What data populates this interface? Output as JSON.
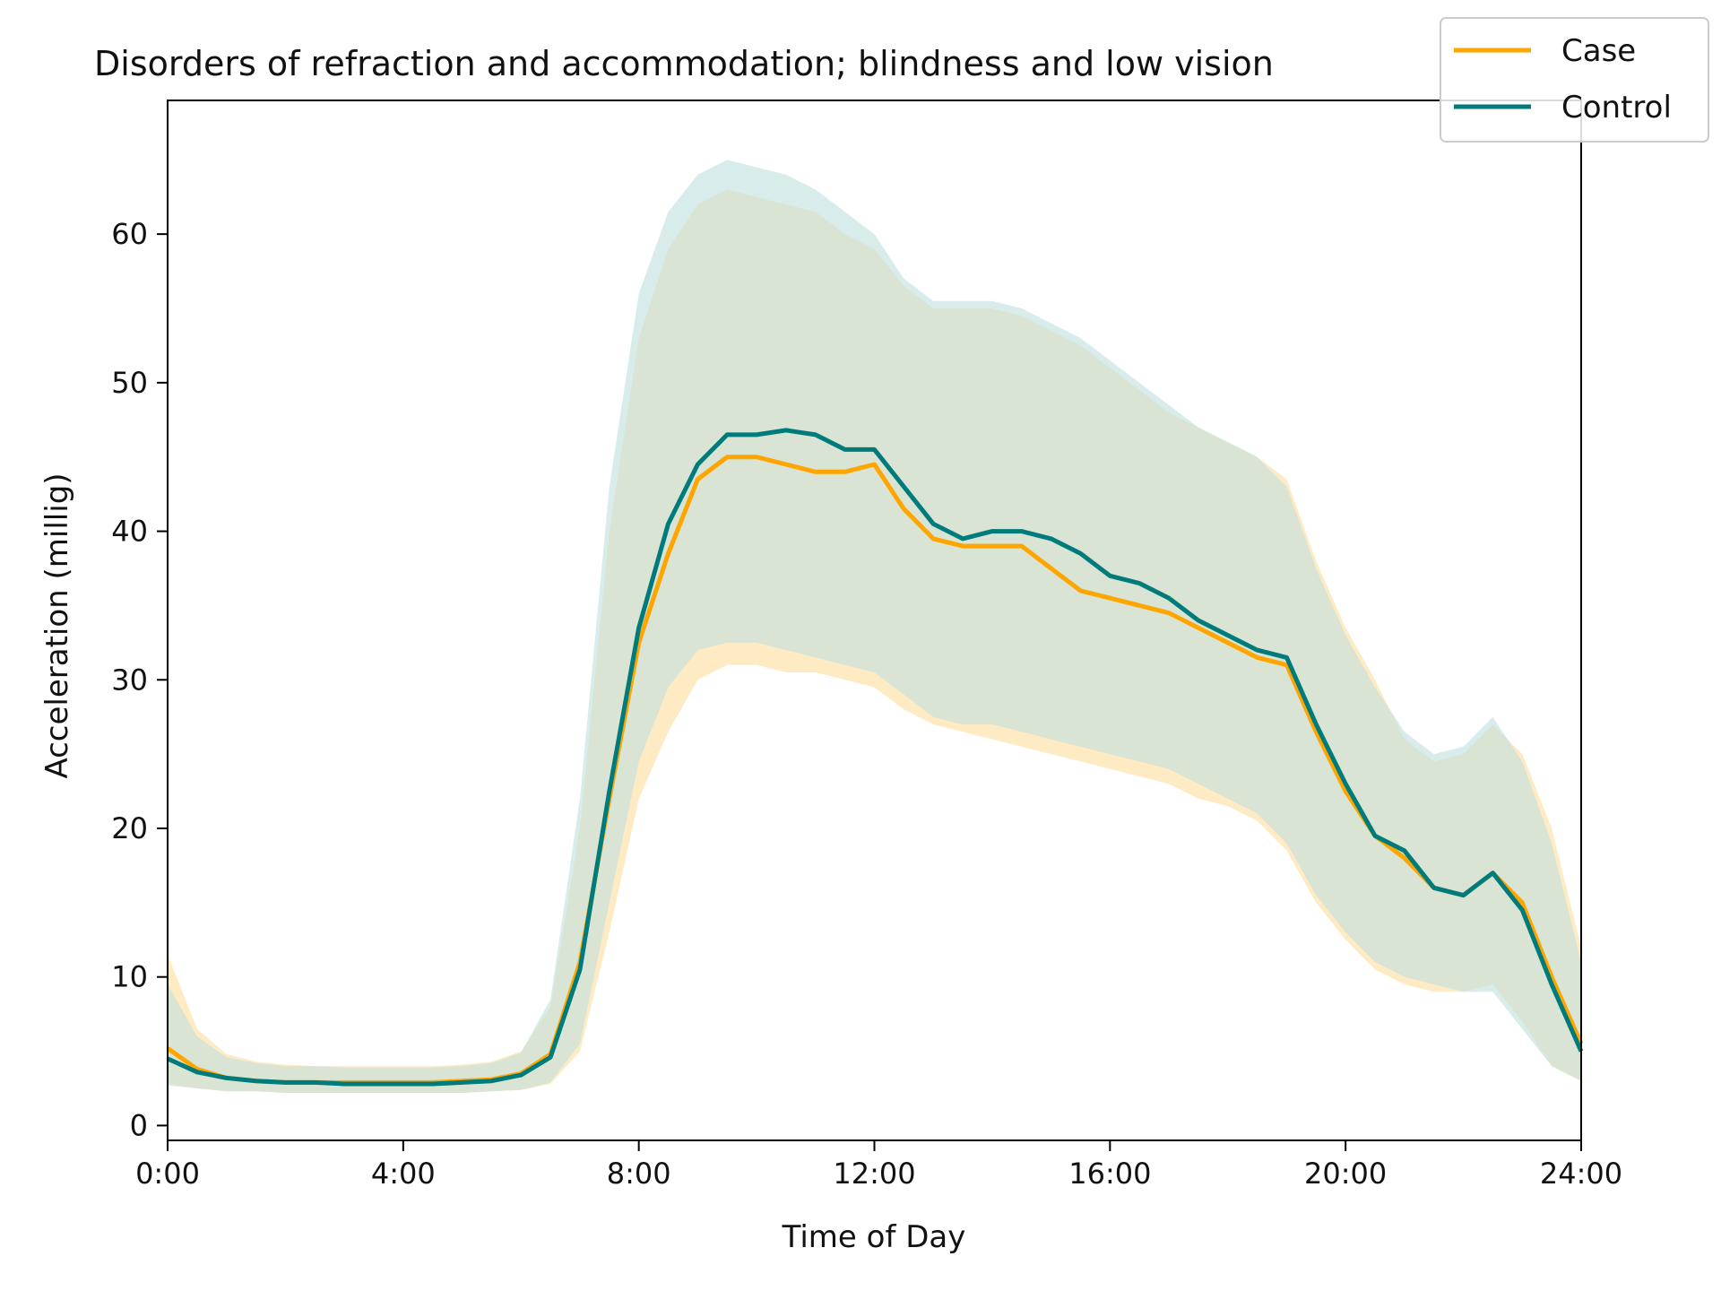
{
  "chart_data": {
    "type": "line",
    "title": "Disorders of refraction and accommodation; blindness and low vision",
    "xlabel": "Time of Day",
    "ylabel": "Acceleration (millig)",
    "xlim": [
      0,
      24
    ],
    "ylim": [
      -1,
      69
    ],
    "x_ticks": [
      0,
      4,
      8,
      12,
      16,
      20,
      24
    ],
    "x_tick_labels": [
      "0:00",
      "4:00",
      "8:00",
      "12:00",
      "16:00",
      "20:00",
      "24:00"
    ],
    "y_ticks": [
      0,
      10,
      20,
      30,
      40,
      50,
      60
    ],
    "y_tick_labels": [
      "0",
      "10",
      "20",
      "30",
      "40",
      "50",
      "60"
    ],
    "legend_position": "top-right",
    "x": [
      0,
      0.5,
      1,
      1.5,
      2,
      2.5,
      3,
      3.5,
      4,
      4.5,
      5,
      5.5,
      6,
      6.5,
      7,
      7.5,
      8,
      8.5,
      9,
      9.5,
      10,
      10.5,
      11,
      11.5,
      12,
      12.5,
      13,
      13.5,
      14,
      14.5,
      15,
      15.5,
      16,
      16.5,
      17,
      17.5,
      18,
      18.5,
      19,
      19.5,
      20,
      20.5,
      21,
      21.5,
      22,
      22.5,
      23,
      23.5,
      24
    ],
    "series": [
      {
        "name": "Case",
        "color": "#ffa500",
        "band_color": "#ffe8b8",
        "values": [
          5.2,
          3.8,
          3.2,
          3.0,
          2.9,
          2.9,
          2.9,
          2.9,
          2.9,
          2.9,
          3.0,
          3.1,
          3.5,
          4.8,
          11.0,
          22.0,
          32.5,
          38.5,
          43.5,
          45.0,
          45.0,
          44.5,
          44.0,
          44.0,
          44.5,
          41.5,
          39.5,
          39.0,
          39.0,
          39.0,
          37.5,
          36.0,
          35.5,
          35.0,
          34.5,
          33.5,
          32.5,
          31.5,
          31.0,
          26.5,
          22.5,
          19.5,
          18.0,
          16.0,
          15.5,
          17.0,
          15.0,
          10.0,
          5.5
        ],
        "lower": [
          2.8,
          2.5,
          2.3,
          2.3,
          2.2,
          2.2,
          2.2,
          2.2,
          2.2,
          2.2,
          2.2,
          2.3,
          2.4,
          2.8,
          5.0,
          13.0,
          22.0,
          26.5,
          30.0,
          31.0,
          31.0,
          30.5,
          30.5,
          30.0,
          29.5,
          28.0,
          27.0,
          26.5,
          26.0,
          25.5,
          25.0,
          24.5,
          24.0,
          23.5,
          23.0,
          22.0,
          21.5,
          20.5,
          18.5,
          15.0,
          12.5,
          10.5,
          9.5,
          9.0,
          9.0,
          9.5,
          7.0,
          4.0,
          3.0
        ],
        "upper": [
          11.5,
          6.5,
          4.8,
          4.3,
          4.1,
          4.0,
          4.0,
          4.0,
          4.0,
          4.0,
          4.1,
          4.3,
          5.0,
          8.0,
          20.0,
          40.0,
          53.0,
          59.0,
          62.0,
          63.0,
          62.5,
          62.0,
          61.5,
          60.0,
          59.0,
          56.5,
          55.0,
          55.0,
          55.0,
          54.5,
          53.5,
          52.5,
          51.0,
          49.5,
          48.0,
          47.0,
          46.0,
          45.0,
          43.5,
          38.0,
          33.5,
          30.0,
          26.0,
          24.5,
          25.0,
          27.0,
          25.0,
          20.0,
          12.0
        ]
      },
      {
        "name": "Control",
        "color": "#007b7b",
        "band_color": "#c0dfe0",
        "values": [
          4.5,
          3.6,
          3.2,
          3.0,
          2.9,
          2.9,
          2.8,
          2.8,
          2.8,
          2.8,
          2.9,
          3.0,
          3.4,
          4.6,
          10.5,
          22.5,
          33.5,
          40.5,
          44.5,
          46.5,
          46.5,
          46.8,
          46.5,
          45.5,
          45.5,
          43.0,
          40.5,
          39.5,
          40.0,
          40.0,
          39.5,
          38.5,
          37.0,
          36.5,
          35.5,
          34.0,
          33.0,
          32.0,
          31.5,
          27.0,
          23.0,
          19.5,
          18.5,
          16.0,
          15.5,
          17.0,
          14.5,
          9.5,
          5.0
        ],
        "lower": [
          2.7,
          2.5,
          2.3,
          2.3,
          2.2,
          2.2,
          2.2,
          2.2,
          2.2,
          2.2,
          2.2,
          2.3,
          2.4,
          2.9,
          5.5,
          15.0,
          24.5,
          29.5,
          32.0,
          32.5,
          32.5,
          32.0,
          31.5,
          31.0,
          30.5,
          29.0,
          27.5,
          27.0,
          27.0,
          26.5,
          26.0,
          25.5,
          25.0,
          24.5,
          24.0,
          23.0,
          22.0,
          21.0,
          19.0,
          15.5,
          13.0,
          11.0,
          10.0,
          9.5,
          9.0,
          9.0,
          6.5,
          4.0,
          3.0
        ],
        "upper": [
          9.5,
          6.0,
          4.6,
          4.2,
          4.0,
          4.0,
          3.9,
          3.9,
          3.9,
          3.9,
          4.0,
          4.2,
          4.9,
          8.5,
          22.0,
          43.0,
          56.0,
          61.5,
          64.0,
          65.0,
          64.5,
          64.0,
          63.0,
          61.5,
          60.0,
          57.0,
          55.5,
          55.5,
          55.5,
          55.0,
          54.0,
          53.0,
          51.5,
          50.0,
          48.5,
          47.0,
          46.0,
          45.0,
          43.0,
          37.5,
          33.0,
          29.5,
          26.5,
          25.0,
          25.5,
          27.5,
          24.5,
          19.0,
          11.0
        ]
      }
    ]
  }
}
